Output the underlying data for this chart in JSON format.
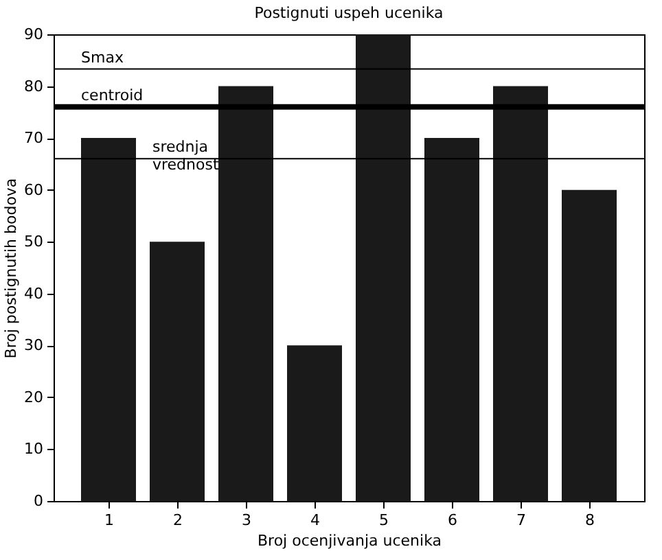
{
  "chart_data": {
    "type": "bar",
    "title": "Postignuti uspeh ucenika",
    "xlabel": "Broj ocenjivanja ucenika",
    "ylabel": "Broj postignutih bodova",
    "categories": [
      "1",
      "2",
      "3",
      "4",
      "5",
      "6",
      "7",
      "8"
    ],
    "values": [
      70,
      50,
      80,
      30,
      90,
      70,
      80,
      60
    ],
    "color": "#1a1a1a",
    "ylim": [
      0,
      90
    ],
    "yticks": [
      0,
      10,
      20,
      30,
      40,
      50,
      60,
      70,
      80,
      90
    ],
    "grid": false,
    "ref_lines": [
      {
        "axis": "y",
        "value": 83.3,
        "label": "Smax",
        "color": "#000000"
      },
      {
        "axis": "y",
        "value": 76,
        "label": "centroid",
        "color": "#000000"
      },
      {
        "axis": "y",
        "value": 66,
        "label": "srednja\nvrednost",
        "color": "#000000"
      }
    ]
  }
}
